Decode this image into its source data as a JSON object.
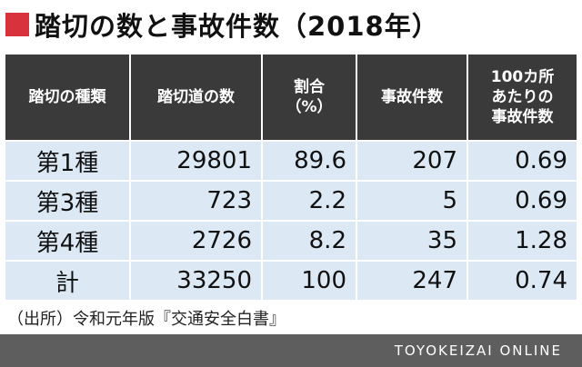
{
  "title": "踏切の数と事故件数（2018年）",
  "table": {
    "headers": [
      [
        "踏切の種類"
      ],
      [
        "踏切道の数"
      ],
      [
        "割合",
        "（%）"
      ],
      [
        "事故件数"
      ],
      [
        "100カ所",
        "あたりの",
        "事故件数"
      ]
    ],
    "rows": [
      [
        "第1種",
        "29801",
        "89.6",
        "207",
        "0.69"
      ],
      [
        "第3種",
        "723",
        "2.2",
        "5",
        "0.69"
      ],
      [
        "第4種",
        "2726",
        "8.2",
        "35",
        "1.28"
      ],
      [
        "計",
        "33250",
        "100",
        "247",
        "0.74"
      ]
    ]
  },
  "source": "（出所）令和元年版『交通安全白書』",
  "brand": "TOYOKEIZAI ONLINE",
  "colors": {
    "accent": "#d8323c",
    "header_bg": "#3a3a3a",
    "cell_bg": "#dce8f4",
    "footer_bg": "#5e5e5e"
  }
}
